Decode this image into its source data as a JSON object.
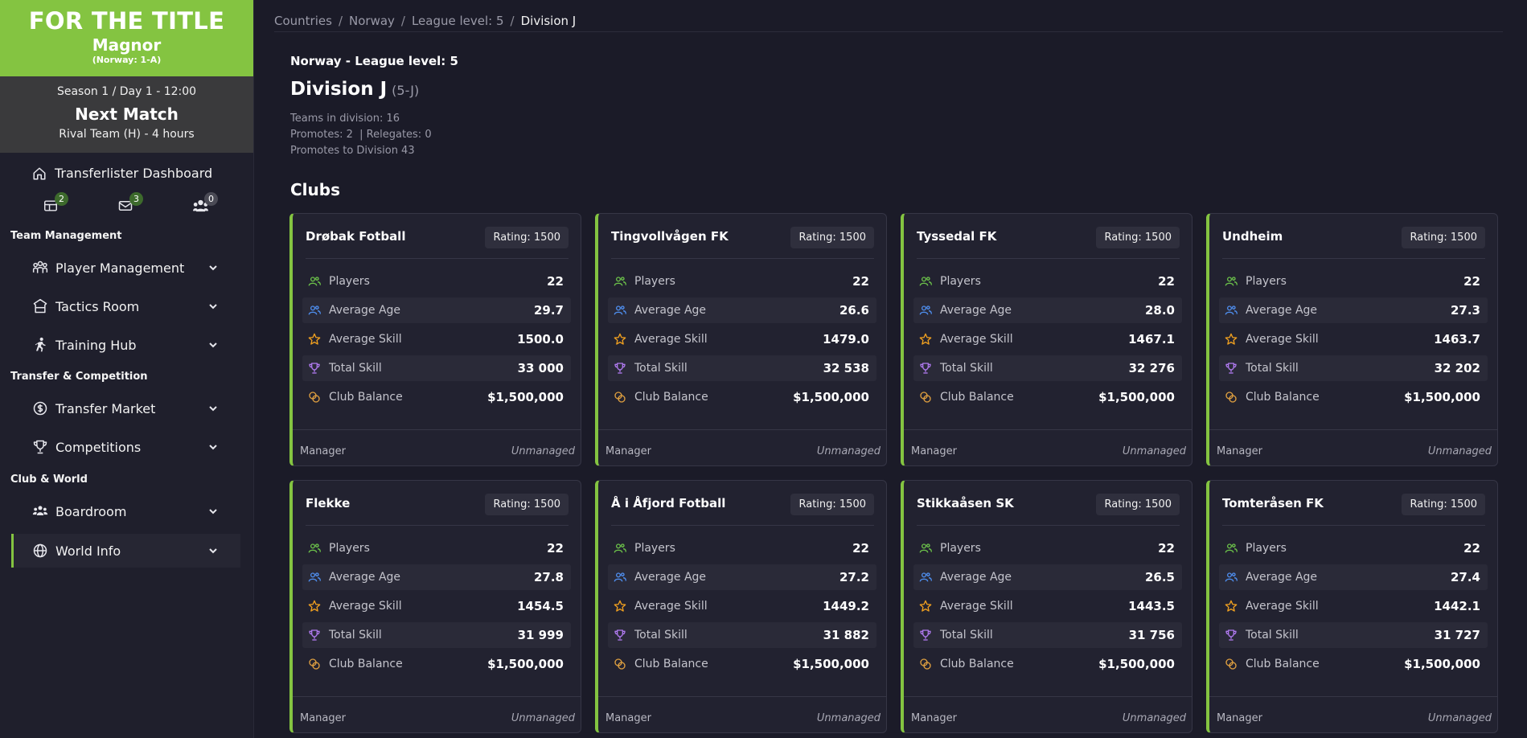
{
  "sidebar": {
    "brand": {
      "title": "FOR THE TITLE",
      "club": "Magnor",
      "sub": "(Norway: 1-A)"
    },
    "next_match": {
      "season": "Season 1 / Day 1 - 12:00",
      "title": "Next Match",
      "rival": "Rival Team (H) - 4 hours"
    },
    "dashboard_label": "Transferlister Dashboard",
    "badges": {
      "news": "2",
      "mail": "3",
      "friends": "0"
    },
    "sections": {
      "team": "Team Management",
      "transfer": "Transfer & Competition",
      "club": "Club & World"
    },
    "nav": {
      "player_management": "Player Management",
      "tactics_room": "Tactics Room",
      "training_hub": "Training Hub",
      "transfer_market": "Transfer Market",
      "competitions": "Competitions",
      "boardroom": "Boardroom",
      "world_info": "World Info"
    }
  },
  "breadcrumb": {
    "countries": "Countries",
    "norway": "Norway",
    "level": "League level: 5",
    "current": "Division J",
    "sep": "/"
  },
  "header": {
    "league": "Norway - League level: 5",
    "division": "Division J",
    "code": "(5-J)",
    "teams": "Teams in division: 16",
    "promotes": "Promotes: 2  | Relegates: 0",
    "promotes_to": "Promotes to Division 43"
  },
  "clubs_title": "Clubs",
  "labels": {
    "players": "Players",
    "average_age": "Average Age",
    "average_skill": "Average Skill",
    "total_skill": "Total Skill",
    "club_balance": "Club Balance",
    "manager": "Manager"
  },
  "colors": {
    "accent": "#84c441",
    "players_icon": "#6cc24a",
    "age_icon": "#4f8ff0",
    "skill_icon": "#f0a020",
    "total_icon": "#b07af0",
    "balance_icon": "#e0a040"
  },
  "clubs": [
    {
      "name": "Drøbak Fotball",
      "rating": "Rating: 1500",
      "players": "22",
      "avg_age": "29.7",
      "avg_skill": "1500.0",
      "total_skill": "33 000",
      "balance": "$1,500,000",
      "manager": "Unmanaged"
    },
    {
      "name": "Tingvollvågen FK",
      "rating": "Rating: 1500",
      "players": "22",
      "avg_age": "26.6",
      "avg_skill": "1479.0",
      "total_skill": "32 538",
      "balance": "$1,500,000",
      "manager": "Unmanaged"
    },
    {
      "name": "Tyssedal FK",
      "rating": "Rating: 1500",
      "players": "22",
      "avg_age": "28.0",
      "avg_skill": "1467.1",
      "total_skill": "32 276",
      "balance": "$1,500,000",
      "manager": "Unmanaged"
    },
    {
      "name": "Undheim",
      "rating": "Rating: 1500",
      "players": "22",
      "avg_age": "27.3",
      "avg_skill": "1463.7",
      "total_skill": "32 202",
      "balance": "$1,500,000",
      "manager": "Unmanaged"
    },
    {
      "name": "Flekke",
      "rating": "Rating: 1500",
      "players": "22",
      "avg_age": "27.8",
      "avg_skill": "1454.5",
      "total_skill": "31 999",
      "balance": "$1,500,000",
      "manager": "Unmanaged"
    },
    {
      "name": "Å i Åfjord Fotball",
      "rating": "Rating: 1500",
      "players": "22",
      "avg_age": "27.2",
      "avg_skill": "1449.2",
      "total_skill": "31 882",
      "balance": "$1,500,000",
      "manager": "Unmanaged"
    },
    {
      "name": "Stikkaåsen SK",
      "rating": "Rating: 1500",
      "players": "22",
      "avg_age": "26.5",
      "avg_skill": "1443.5",
      "total_skill": "31 756",
      "balance": "$1,500,000",
      "manager": "Unmanaged"
    },
    {
      "name": "Tomteråsen FK",
      "rating": "Rating: 1500",
      "players": "22",
      "avg_age": "27.4",
      "avg_skill": "1442.1",
      "total_skill": "31 727",
      "balance": "$1,500,000",
      "manager": "Unmanaged"
    }
  ]
}
